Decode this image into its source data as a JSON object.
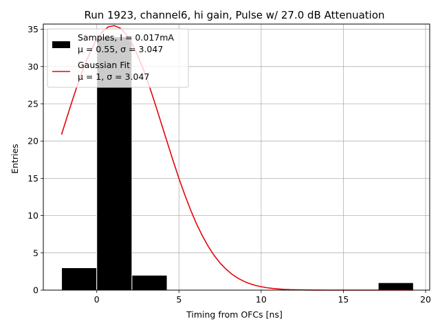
{
  "chart_data": {
    "type": "bar",
    "title": "Run 1923, channel6, hi gain, Pulse w/ 27.0 dB Attenuation",
    "xlabel": "Timing from OFCs [ns]",
    "ylabel": "Entries",
    "xlim": [
      -3.25,
      20.25
    ],
    "ylim": [
      0,
      35.7
    ],
    "xticks": [
      0,
      5,
      10,
      15,
      20
    ],
    "yticks": [
      0,
      5,
      10,
      15,
      20,
      25,
      30,
      35
    ],
    "grid": true,
    "legend_position": "top-left",
    "histogram": {
      "name": "Samples, I = 0.017mA",
      "stats": "μ = 0.55, σ = 3.047",
      "color": "#000000",
      "bins": [
        {
          "x0": -2.14,
          "x1": 0.0,
          "count": 3
        },
        {
          "x0": 0.0,
          "x1": 2.14,
          "count": 34
        },
        {
          "x0": 2.14,
          "x1": 4.28,
          "count": 2
        },
        {
          "x0": 17.12,
          "x1": 19.26,
          "count": 1
        }
      ]
    },
    "fit": {
      "name": "Gaussian Fit",
      "stats": "μ = 1, σ = 3.047",
      "color": "#e8000b",
      "amplitude": 35.5,
      "mu": 1,
      "sigma": 3.047,
      "x_range": [
        -2.14,
        19.26
      ]
    }
  }
}
